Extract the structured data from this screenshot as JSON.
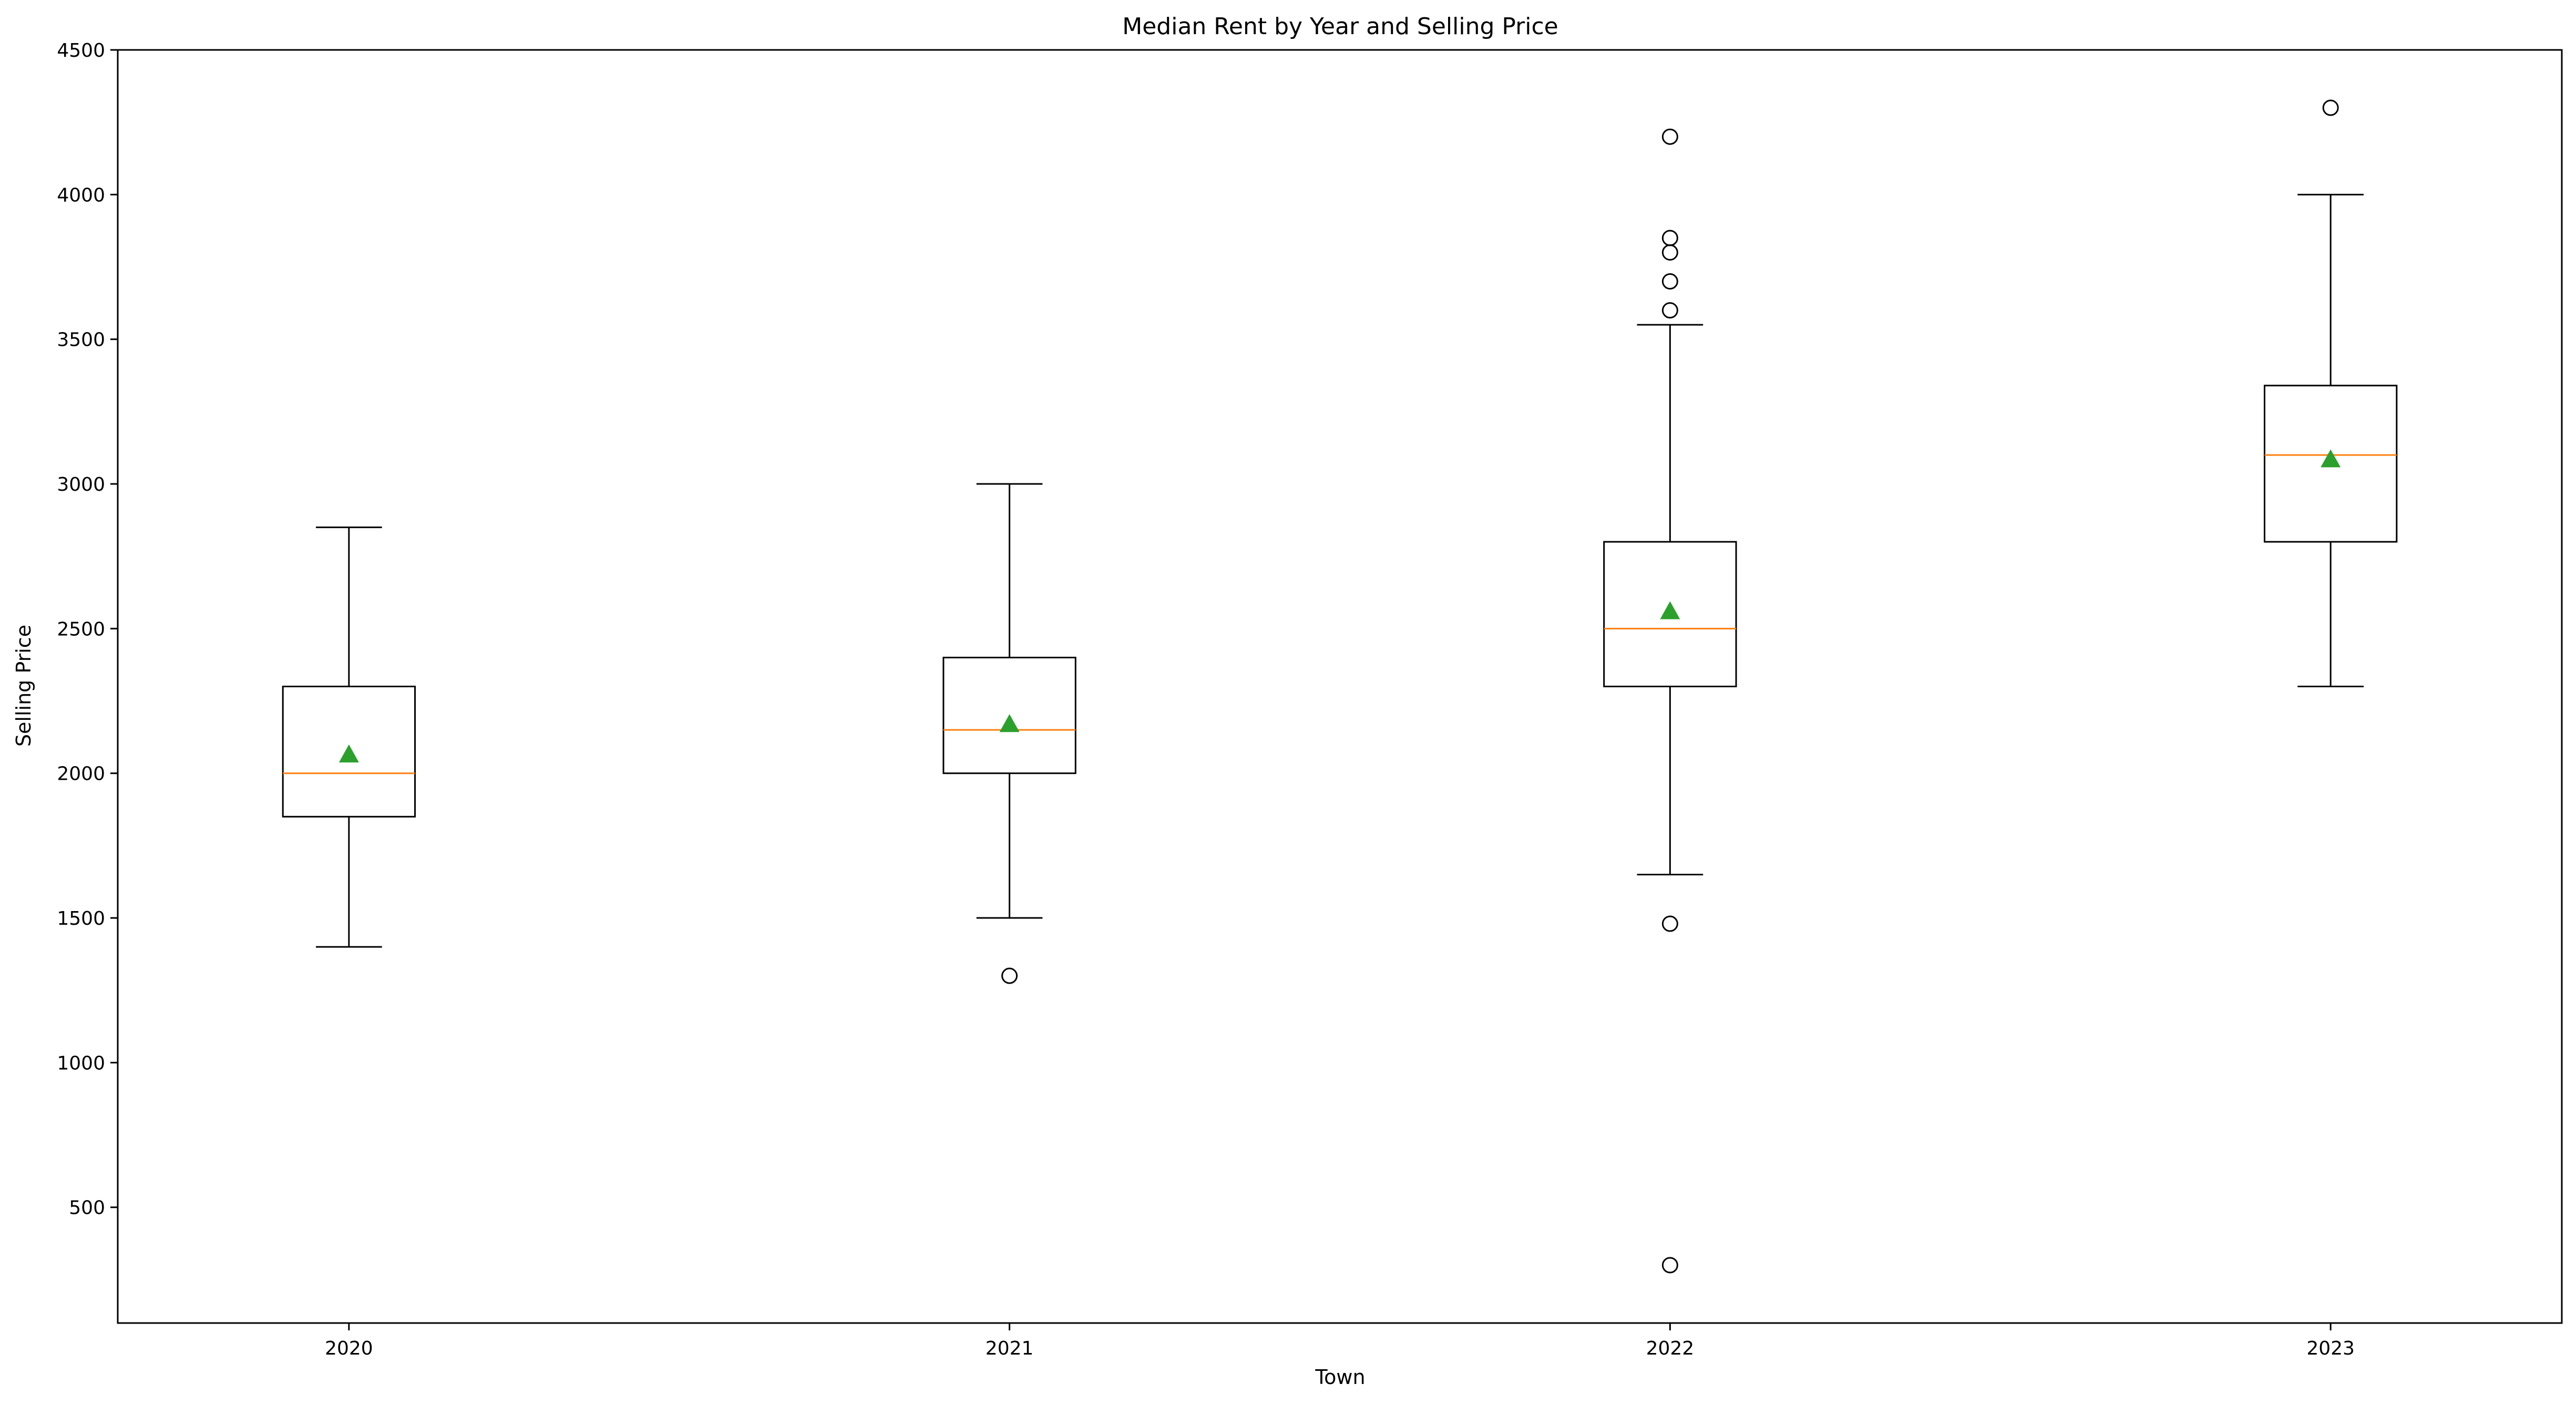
{
  "chart_data": {
    "type": "box",
    "title": "Median Rent by Year and Selling Price",
    "xlabel": "Town",
    "ylabel": "Selling Price",
    "ylim": [
      100,
      4500
    ],
    "yticks": [
      500,
      1000,
      1500,
      2000,
      2500,
      3000,
      3500,
      4000,
      4500
    ],
    "grid": false,
    "categories": [
      "2020",
      "2021",
      "2022",
      "2023"
    ],
    "boxes": [
      {
        "category": "2020",
        "whisker_low": 1400,
        "q1": 1850,
        "median": 2000,
        "q3": 2300,
        "whisker_high": 2850,
        "mean": 2065,
        "outliers": []
      },
      {
        "category": "2021",
        "whisker_low": 1500,
        "q1": 2000,
        "median": 2150,
        "q3": 2400,
        "whisker_high": 3000,
        "mean": 2170,
        "outliers": [
          1300
        ]
      },
      {
        "category": "2022",
        "whisker_low": 1650,
        "q1": 2300,
        "median": 2500,
        "q3": 2800,
        "whisker_high": 3550,
        "mean": 2560,
        "outliers": [
          300,
          1480,
          3600,
          3700,
          3800,
          3850,
          4200
        ]
      },
      {
        "category": "2023",
        "whisker_low": 2300,
        "q1": 2800,
        "median": 3100,
        "q3": 3340,
        "whisker_high": 4000,
        "mean": 3085,
        "outliers": [
          4300
        ]
      }
    ],
    "colors": {
      "box": "#000000",
      "median": "#ff7f0e",
      "mean": "#2ca02c",
      "outlier": "#000000"
    }
  }
}
